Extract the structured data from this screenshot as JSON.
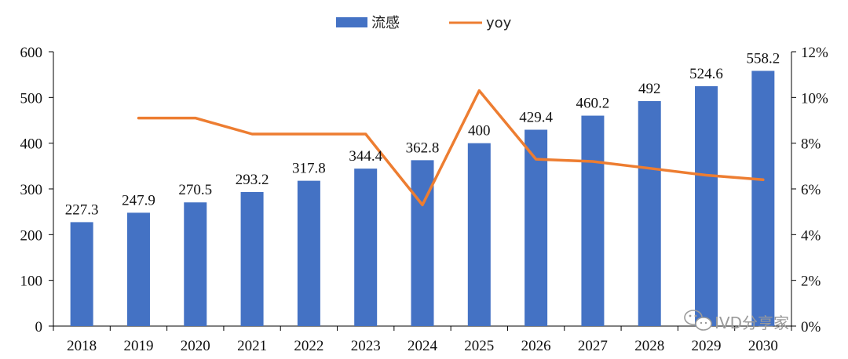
{
  "chart_data": {
    "type": "bar",
    "categories": [
      "2018",
      "2019",
      "2020",
      "2021",
      "2022",
      "2023",
      "2024",
      "2025",
      "2026",
      "2027",
      "2028",
      "2029",
      "2030"
    ],
    "series": [
      {
        "name": "流感",
        "type": "bar",
        "axis": "left",
        "color": "#4472C4",
        "values": [
          227.3,
          247.9,
          270.5,
          293.2,
          317.8,
          344.4,
          362.8,
          400,
          429.4,
          460.2,
          492,
          524.6,
          558.2
        ],
        "labels": [
          "227.3",
          "247.9",
          "270.5",
          "293.2",
          "317.8",
          "344.4",
          "362.8",
          "400",
          "429.4",
          "460.2",
          "492",
          "524.6",
          "558.2"
        ]
      },
      {
        "name": "yoy",
        "type": "line",
        "axis": "right",
        "color": "#ED7D31",
        "values": [
          null,
          9.1,
          9.1,
          8.4,
          8.4,
          8.4,
          5.3,
          10.3,
          7.3,
          7.2,
          6.9,
          6.6,
          6.4
        ]
      }
    ],
    "y_left": {
      "ylim": [
        0,
        600
      ],
      "ticks": [
        "0",
        "100",
        "200",
        "300",
        "400",
        "500",
        "600"
      ]
    },
    "y_right": {
      "ylim": [
        0,
        12
      ],
      "ticks": [
        "0%",
        "2%",
        "4%",
        "6%",
        "8%",
        "10%",
        "12%"
      ]
    },
    "legend": {
      "position": "top-center",
      "entries": [
        "流感",
        "yoy"
      ]
    },
    "grid": false
  },
  "watermark": {
    "text": "IVD分享家",
    "icon": "wechat-icon"
  }
}
